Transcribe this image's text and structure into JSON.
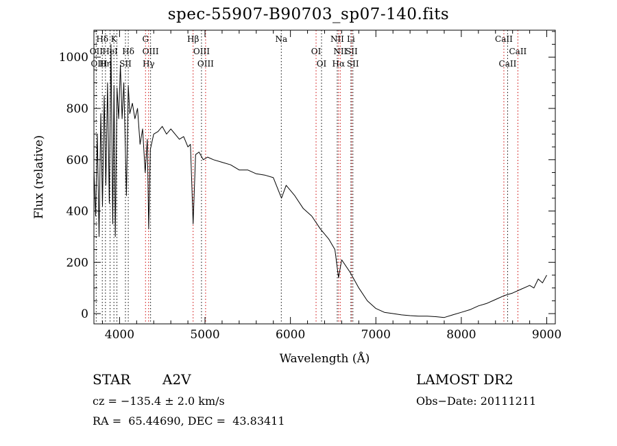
{
  "chart_data": {
    "type": "line",
    "title": "spec-55907-B90703_sp07-140.fits",
    "xlabel": "Wavelength (Å)",
    "ylabel": "Flux (relative)",
    "xlim": [
      3700,
      9100
    ],
    "ylim": [
      -40,
      1105
    ],
    "xticks": [
      4000,
      5000,
      6000,
      7000,
      8000,
      9000
    ],
    "yticks": [
      0,
      200,
      400,
      600,
      800,
      1000
    ],
    "grid": false,
    "series": [
      {
        "line_color": "#000000",
        "x": [
          3700,
          3720,
          3740,
          3760,
          3780,
          3800,
          3820,
          3840,
          3860,
          3880,
          3900,
          3920,
          3935,
          3950,
          3970,
          3990,
          4010,
          4030,
          4050,
          4080,
          4102,
          4120,
          4150,
          4180,
          4210,
          4240,
          4270,
          4300,
          4325,
          4341,
          4360,
          4400,
          4450,
          4500,
          4550,
          4600,
          4650,
          4700,
          4750,
          4800,
          4830,
          4861,
          4890,
          4930,
          4980,
          5030,
          5100,
          5200,
          5300,
          5400,
          5500,
          5600,
          5700,
          5800,
          5895,
          5950,
          6050,
          6150,
          6250,
          6350,
          6450,
          6520,
          6563,
          6600,
          6700,
          6800,
          6900,
          7000,
          7100,
          7200,
          7300,
          7400,
          7500,
          7600,
          7700,
          7800,
          7900,
          8000,
          8100,
          8200,
          8300,
          8400,
          8500,
          8600,
          8700,
          8800,
          8850,
          8900,
          8950,
          9000
        ],
        "y": [
          560,
          380,
          700,
          300,
          780,
          420,
          850,
          500,
          900,
          430,
          1050,
          350,
          890,
          300,
          880,
          760,
          970,
          760,
          900,
          460,
          890,
          780,
          820,
          760,
          800,
          660,
          720,
          550,
          680,
          330,
          640,
          700,
          710,
          730,
          700,
          720,
          700,
          680,
          690,
          650,
          660,
          350,
          620,
          630,
          600,
          610,
          600,
          590,
          580,
          560,
          560,
          545,
          540,
          530,
          450,
          500,
          460,
          410,
          380,
          330,
          290,
          250,
          140,
          210,
          160,
          100,
          50,
          20,
          5,
          0,
          -5,
          -8,
          -10,
          -10,
          -12,
          -15,
          -5,
          5,
          15,
          30,
          40,
          55,
          70,
          80,
          95,
          110,
          100,
          135,
          120,
          150
        ]
      }
    ],
    "line_ids": [
      {
        "label": "Hδ",
        "x": 3798,
        "row": 1,
        "color": "#000000"
      },
      {
        "label": "K",
        "x": 3934,
        "row": 1,
        "color": "#000000"
      },
      {
        "label": "G",
        "x": 4304,
        "row": 1,
        "color": "#000000"
      },
      {
        "label": "Hβ",
        "x": 4861,
        "row": 1,
        "color": "#000000"
      },
      {
        "label": "Na",
        "x": 5893,
        "row": 1,
        "color": "#000000"
      },
      {
        "label": "NII",
        "x": 6548,
        "row": 1,
        "color": "#000000"
      },
      {
        "label": "Li",
        "x": 6708,
        "row": 1,
        "color": "#000000"
      },
      {
        "label": "CaII",
        "x": 8498,
        "row": 1,
        "color": "#000000"
      },
      {
        "label": "OII",
        "x": 3727,
        "row": 2,
        "color": "#000000"
      },
      {
        "label": "HeI",
        "x": 3889,
        "row": 2,
        "color": "#000000"
      },
      {
        "label": "Hδ",
        "x": 4102,
        "row": 2,
        "color": "#000000"
      },
      {
        "label": "OIII",
        "x": 4363,
        "row": 2,
        "color": "#000000"
      },
      {
        "label": "OIII",
        "x": 4959,
        "row": 2,
        "color": "#000000"
      },
      {
        "label": "OI",
        "x": 6300,
        "row": 2,
        "color": "#000000"
      },
      {
        "label": "NII",
        "x": 6583,
        "row": 2,
        "color": "#000000"
      },
      {
        "label": "SII",
        "x": 6716,
        "row": 2,
        "color": "#000000"
      },
      {
        "label": "CaII",
        "x": 8662,
        "row": 2,
        "color": "#000000"
      },
      {
        "label": "OIII",
        "x": 3760,
        "row": 3,
        "color": "#000000"
      },
      {
        "label": "Hη",
        "x": 3835,
        "row": 3,
        "color": "#000000"
      },
      {
        "label": "SII",
        "x": 4069,
        "row": 3,
        "color": "#000000"
      },
      {
        "label": "Hγ",
        "x": 4340,
        "row": 3,
        "color": "#000000"
      },
      {
        "label": "OIII",
        "x": 5007,
        "row": 3,
        "color": "#000000"
      },
      {
        "label": "OI",
        "x": 6364,
        "row": 3,
        "color": "#000000"
      },
      {
        "label": "Hα",
        "x": 6563,
        "row": 3,
        "color": "#000000"
      },
      {
        "label": "SII",
        "x": 6731,
        "row": 3,
        "color": "#000000"
      },
      {
        "label": "CaII",
        "x": 8542,
        "row": 3,
        "color": "#000000"
      }
    ],
    "marker_lines": [
      {
        "x": 3727,
        "color": "#000000"
      },
      {
        "x": 3798,
        "color": "#000000"
      },
      {
        "x": 3835,
        "color": "#000000"
      },
      {
        "x": 3889,
        "color": "#000000"
      },
      {
        "x": 3934,
        "color": "#000000"
      },
      {
        "x": 3969,
        "color": "#000000"
      },
      {
        "x": 4069,
        "color": "#000000"
      },
      {
        "x": 4102,
        "color": "#000000"
      },
      {
        "x": 4304,
        "color": "#cc0000"
      },
      {
        "x": 4340,
        "color": "#cc0000"
      },
      {
        "x": 4363,
        "color": "#000000"
      },
      {
        "x": 4861,
        "color": "#cc0000"
      },
      {
        "x": 4959,
        "color": "#000000"
      },
      {
        "x": 5007,
        "color": "#cc0000"
      },
      {
        "x": 5893,
        "color": "#000000"
      },
      {
        "x": 6300,
        "color": "#cc0000"
      },
      {
        "x": 6364,
        "color": "#000000"
      },
      {
        "x": 6548,
        "color": "#000000"
      },
      {
        "x": 6563,
        "color": "#cc0000"
      },
      {
        "x": 6583,
        "color": "#cc0000"
      },
      {
        "x": 6708,
        "color": "#000000"
      },
      {
        "x": 6716,
        "color": "#cc0000"
      },
      {
        "x": 6731,
        "color": "#000000"
      },
      {
        "x": 8498,
        "color": "#cc0000"
      },
      {
        "x": 8542,
        "color": "#000000"
      },
      {
        "x": 8662,
        "color": "#cc0000"
      }
    ]
  },
  "info": {
    "object_class": "STAR",
    "subclass": "A2V",
    "survey": "LAMOST DR2",
    "redshift": "cz = −135.4 ± 2.0 km/s",
    "obs_date": "Obs−Date: 20111211",
    "coords": "RA =  65.44690, DEC =  43.83411"
  }
}
